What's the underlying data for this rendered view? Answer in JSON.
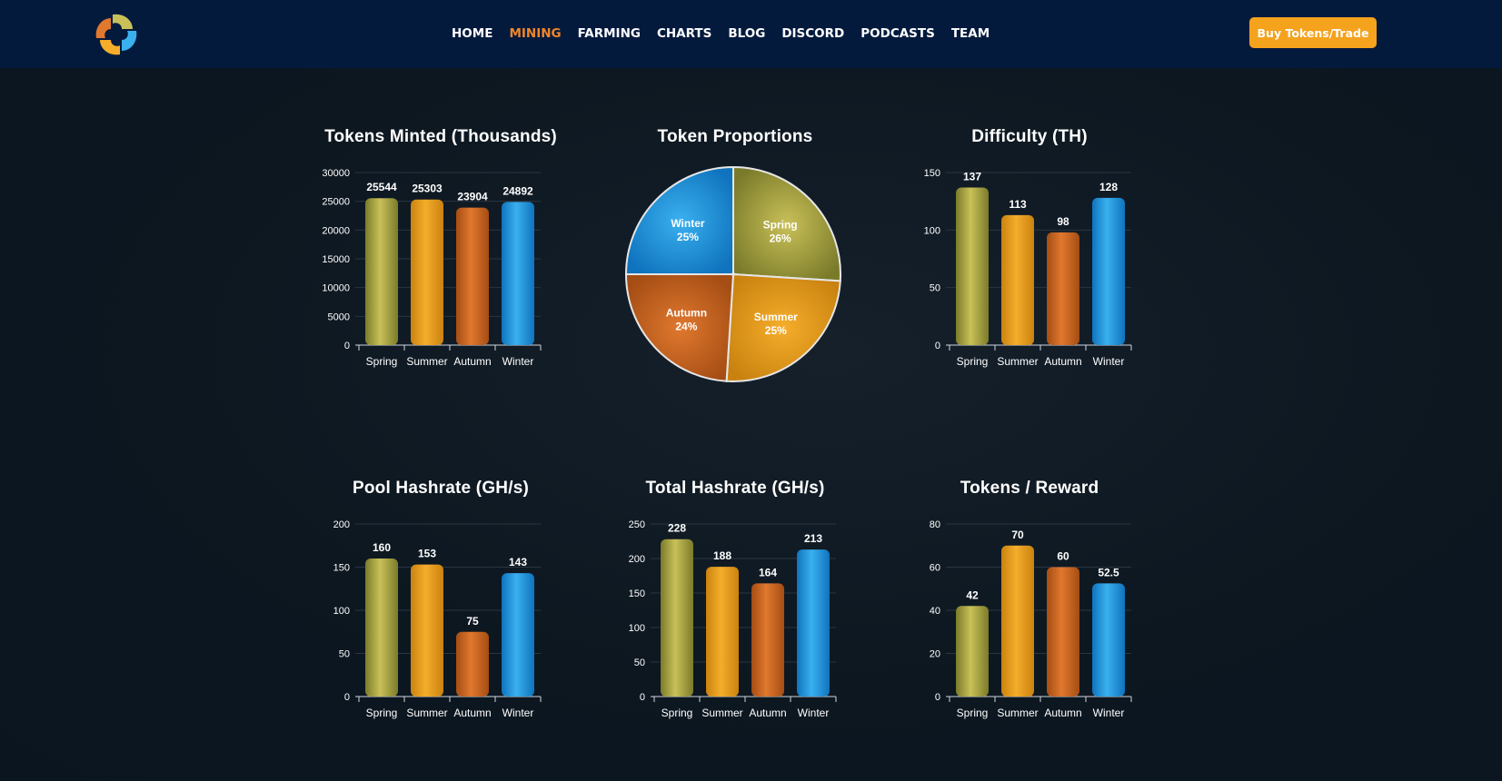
{
  "header": {
    "nav": [
      {
        "label": "HOME",
        "active": false
      },
      {
        "label": "MINING",
        "active": true
      },
      {
        "label": "FARMING",
        "active": false
      },
      {
        "label": "CHARTS",
        "active": false
      },
      {
        "label": "BLOG",
        "active": false
      },
      {
        "label": "DISCORD",
        "active": false
      },
      {
        "label": "PODCASTS",
        "active": false
      },
      {
        "label": "TEAM",
        "active": false
      }
    ],
    "cta_label": "Buy Tokens/Trade"
  },
  "colors": {
    "spring": [
      "#7a7b2a",
      "#c9c058"
    ],
    "summer": [
      "#c9820f",
      "#f5ad2b"
    ],
    "autumn": [
      "#a44d14",
      "#e0782e"
    ],
    "winter": [
      "#0f73bd",
      "#3ab0ef"
    ]
  },
  "chart_data": [
    {
      "id": "tokens-minted",
      "type": "bar",
      "title": "Tokens Minted (Thousands)",
      "categories": [
        "Spring",
        "Summer",
        "Autumn",
        "Winter"
      ],
      "values": [
        25544,
        25303,
        23904,
        24892
      ],
      "labels": [
        "25544",
        "25303",
        "23904",
        "24892"
      ],
      "ylim": [
        0,
        30000
      ],
      "yticks": [
        0,
        5000,
        10000,
        15000,
        20000,
        25000,
        30000
      ]
    },
    {
      "id": "token-proportions",
      "type": "pie",
      "title": "Token Proportions",
      "slices": [
        {
          "name": "Spring",
          "value": 26,
          "label": "26%"
        },
        {
          "name": "Summer",
          "value": 25,
          "label": "25%"
        },
        {
          "name": "Autumn",
          "value": 24,
          "label": "24%"
        },
        {
          "name": "Winter",
          "value": 25,
          "label": "25%"
        }
      ]
    },
    {
      "id": "difficulty",
      "type": "bar",
      "title": "Difficulty (TH)",
      "categories": [
        "Spring",
        "Summer",
        "Autumn",
        "Winter"
      ],
      "values": [
        137,
        113,
        98,
        128
      ],
      "labels": [
        "137",
        "113",
        "98",
        "128"
      ],
      "ylim": [
        0,
        150
      ],
      "yticks": [
        0,
        50,
        100,
        150
      ]
    },
    {
      "id": "pool-hashrate",
      "type": "bar",
      "title": "Pool Hashrate (GH/s)",
      "categories": [
        "Spring",
        "Summer",
        "Autumn",
        "Winter"
      ],
      "values": [
        160,
        153,
        75,
        143
      ],
      "labels": [
        "160",
        "153",
        "75",
        "143"
      ],
      "ylim": [
        0,
        200
      ],
      "yticks": [
        0,
        50,
        100,
        150,
        200
      ]
    },
    {
      "id": "total-hashrate",
      "type": "bar",
      "title": "Total Hashrate (GH/s)",
      "categories": [
        "Spring",
        "Summer",
        "Autumn",
        "Winter"
      ],
      "values": [
        228,
        188,
        164,
        213
      ],
      "labels": [
        "228",
        "188",
        "164",
        "213"
      ],
      "ylim": [
        0,
        250
      ],
      "yticks": [
        0,
        50,
        100,
        150,
        200,
        250
      ]
    },
    {
      "id": "tokens-reward",
      "type": "bar",
      "title": "Tokens / Reward",
      "categories": [
        "Spring",
        "Summer",
        "Autumn",
        "Winter"
      ],
      "values": [
        42,
        70,
        60,
        52.5
      ],
      "labels": [
        "42",
        "70",
        "60",
        "52.5"
      ],
      "ylim": [
        0,
        80
      ],
      "yticks": [
        0,
        20,
        40,
        60,
        80
      ]
    }
  ]
}
